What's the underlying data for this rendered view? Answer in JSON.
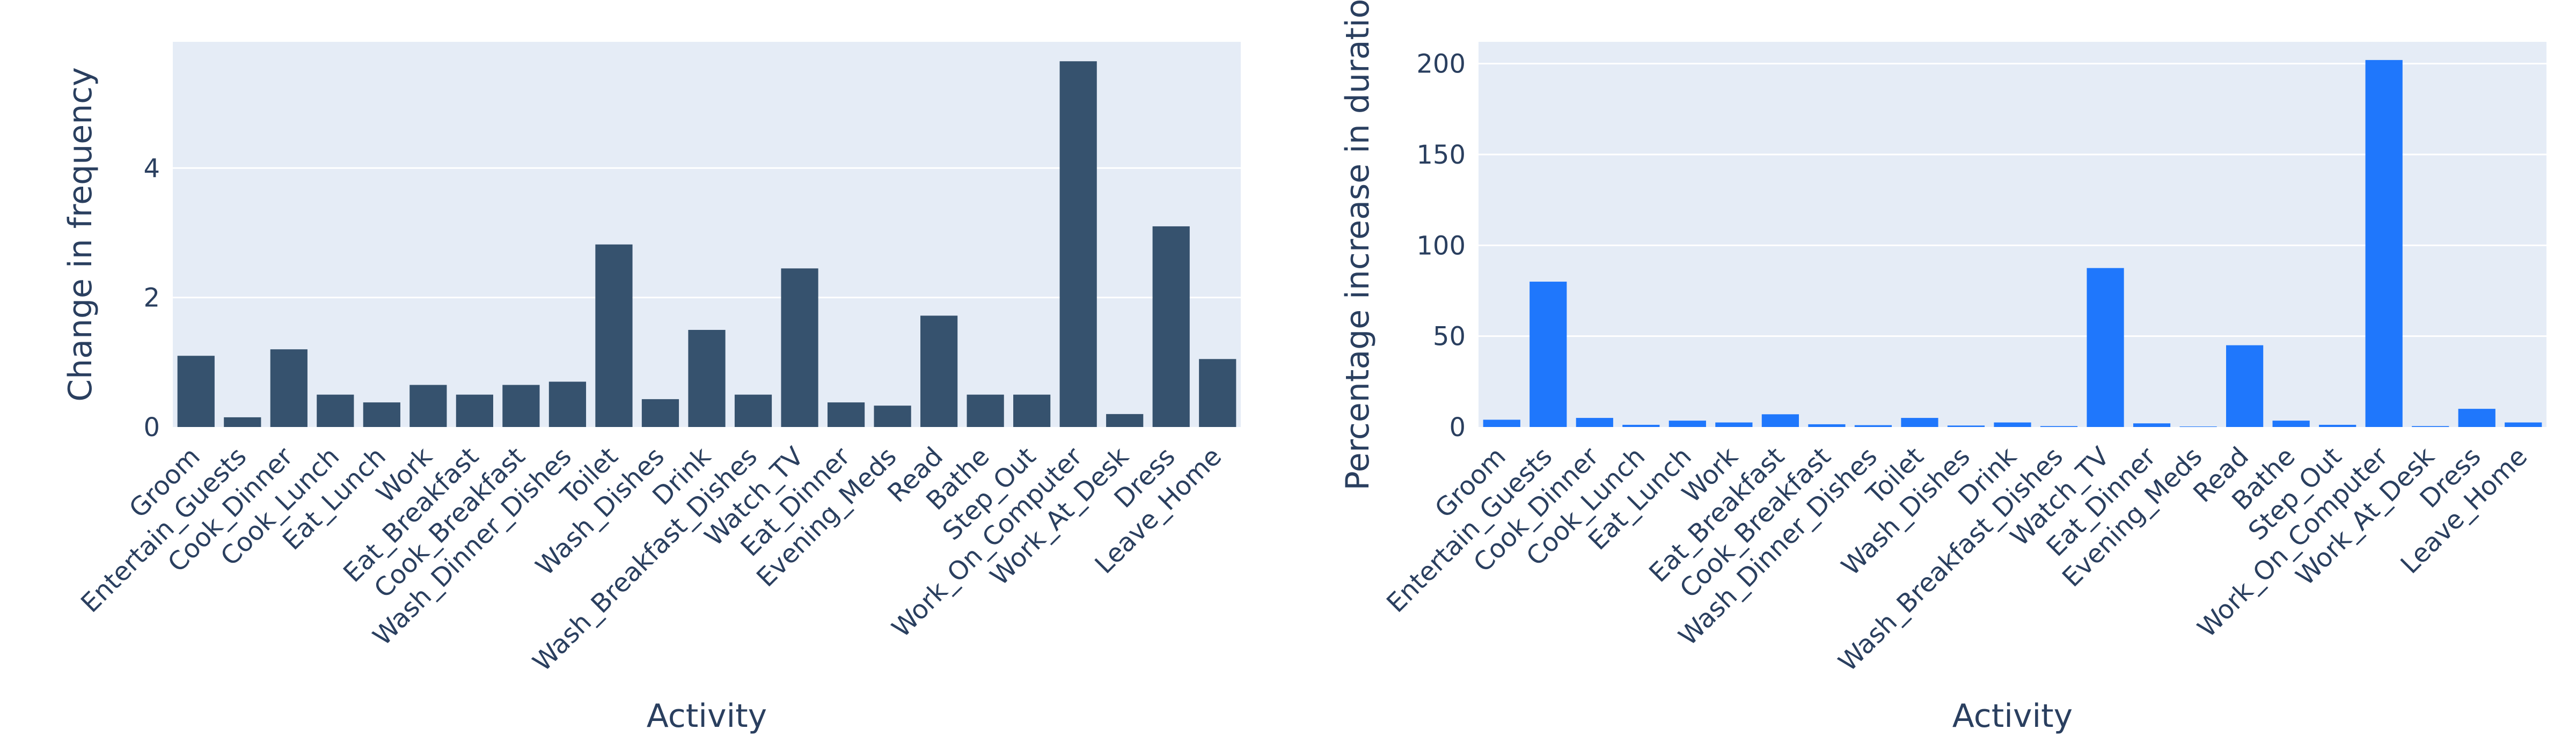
{
  "colors": {
    "plot_bg": "#e5ecf6",
    "grid": "#ffffff",
    "text": "#2a3f5f",
    "left_bar": "#36526e",
    "right_bar": "#1f77fc"
  },
  "chart_data": [
    {
      "type": "bar",
      "xlabel": "Activity",
      "ylabel": "Change in frequency",
      "ylim": [
        0,
        5.95
      ],
      "yticks": [
        0,
        2,
        4
      ],
      "grid": true,
      "categories": [
        "Groom",
        "Entertain_Guests",
        "Cook_Dinner",
        "Cook_Lunch",
        "Eat_Lunch",
        "Work",
        "Eat_Breakfast",
        "Cook_Breakfast",
        "Wash_Dinner_Dishes",
        "Toilet",
        "Wash_Dishes",
        "Drink",
        "Wash_Breakfast_Dishes",
        "Watch_TV",
        "Eat_Dinner",
        "Evening_Meds",
        "Read",
        "Bathe",
        "Step_Out",
        "Work_On_Computer",
        "Work_At_Desk",
        "Dress",
        "Leave_Home"
      ],
      "values": [
        1.1,
        0.15,
        1.2,
        0.5,
        0.38,
        0.65,
        0.5,
        0.65,
        0.7,
        2.82,
        0.43,
        1.5,
        0.5,
        2.45,
        0.38,
        0.33,
        1.72,
        0.5,
        0.5,
        5.65,
        0.2,
        3.1,
        1.05
      ]
    },
    {
      "type": "bar",
      "xlabel": "Activity",
      "ylabel": "Percentage increase in duration",
      "ylim": [
        0,
        212
      ],
      "yticks": [
        0,
        50,
        100,
        150,
        200
      ],
      "grid": true,
      "categories": [
        "Groom",
        "Entertain_Guests",
        "Cook_Dinner",
        "Cook_Lunch",
        "Eat_Lunch",
        "Work",
        "Eat_Breakfast",
        "Cook_Breakfast",
        "Wash_Dinner_Dishes",
        "Toilet",
        "Wash_Dishes",
        "Drink",
        "Wash_Breakfast_Dishes",
        "Watch_TV",
        "Eat_Dinner",
        "Evening_Meds",
        "Read",
        "Bathe",
        "Step_Out",
        "Work_On_Computer",
        "Work_At_Desk",
        "Dress",
        "Leave_Home"
      ],
      "values": [
        4,
        80,
        5,
        1.2,
        3.5,
        2.5,
        7,
        1.5,
        1,
        5,
        0.8,
        2.5,
        0.5,
        87.5,
        2,
        0.3,
        45,
        3.5,
        1.2,
        202,
        0.5,
        10,
        2.5
      ]
    }
  ]
}
